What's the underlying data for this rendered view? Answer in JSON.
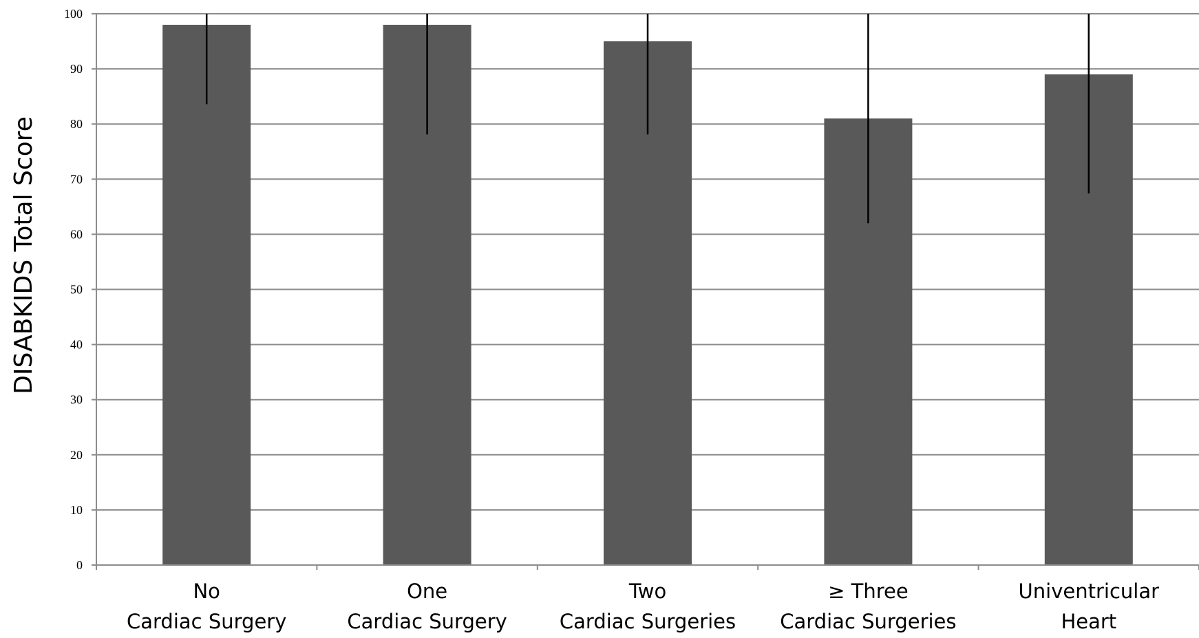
{
  "chart_data": {
    "type": "bar",
    "title": "",
    "xlabel": "",
    "ylabel": "DISABKIDS Total Score",
    "ylim": [
      0,
      100
    ],
    "yticks": [
      0,
      10,
      20,
      30,
      40,
      50,
      60,
      70,
      80,
      90,
      100
    ],
    "grid": true,
    "legend": "none",
    "bar_color": "#595959",
    "grid_color": "#8c8c8c",
    "categories": [
      [
        "No",
        "Cardiac Surgery"
      ],
      [
        "One",
        "Cardiac Surgery"
      ],
      [
        "Two",
        "Cardiac Surgeries"
      ],
      [
        "≥ Three",
        "Cardiac Surgeries"
      ],
      [
        "Univentricular",
        "Heart"
      ]
    ],
    "values": [
      98,
      98,
      95,
      81,
      89
    ],
    "error_bars": [
      {
        "low": 83.6,
        "high": 100
      },
      {
        "low": 78.1,
        "high": 100
      },
      {
        "low": 78.1,
        "high": 100
      },
      {
        "low": 62.0,
        "high": 100
      },
      {
        "low": 67.4,
        "high": 100
      }
    ]
  }
}
